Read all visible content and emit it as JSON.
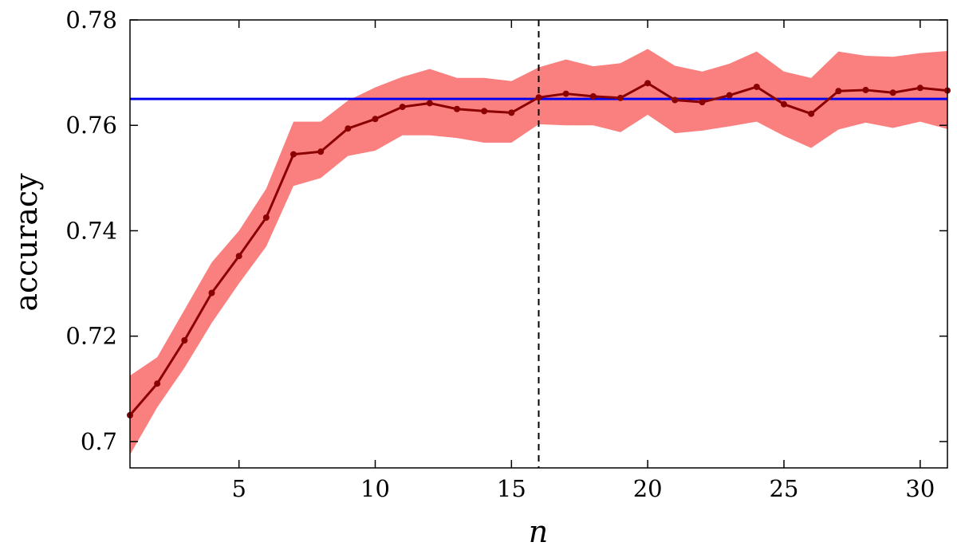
{
  "chart_data": {
    "type": "line",
    "title": "",
    "xlabel": "n",
    "ylabel": "accuracy",
    "xlim": [
      1,
      31
    ],
    "ylim": [
      0.695,
      0.78
    ],
    "xticks": [
      5,
      10,
      15,
      20,
      25,
      30
    ],
    "xtick_labels": [
      "5",
      "10",
      "15",
      "20",
      "25",
      "30"
    ],
    "yticks": [
      0.7,
      0.72,
      0.74,
      0.76,
      0.78
    ],
    "ytick_labels": [
      "0.7",
      "0.72",
      "0.74",
      "0.76",
      "0.78"
    ],
    "grid": false,
    "legend": "none",
    "x": [
      1,
      2,
      3,
      4,
      5,
      6,
      7,
      8,
      9,
      10,
      11,
      12,
      13,
      14,
      15,
      16,
      17,
      18,
      19,
      20,
      21,
      22,
      23,
      24,
      25,
      26,
      27,
      28,
      29,
      30,
      31
    ],
    "series": [
      {
        "values": [
          0.705,
          0.711,
          0.7192,
          0.7282,
          0.7352,
          0.7425,
          0.7545,
          0.755,
          0.7594,
          0.7612,
          0.7635,
          0.7642,
          0.7631,
          0.7627,
          0.7624,
          0.7653,
          0.766,
          0.7655,
          0.7652,
          0.768,
          0.7648,
          0.7644,
          0.7657,
          0.7673,
          0.764,
          0.7622,
          0.7665,
          0.7667,
          0.7662,
          0.7671,
          0.7666
        ],
        "upper": [
          0.7125,
          0.716,
          0.725,
          0.734,
          0.74,
          0.748,
          0.7607,
          0.7607,
          0.7647,
          0.7672,
          0.7692,
          0.7707,
          0.769,
          0.769,
          0.7684,
          0.771,
          0.7725,
          0.7712,
          0.7718,
          0.7745,
          0.7713,
          0.7702,
          0.7717,
          0.774,
          0.7702,
          0.769,
          0.774,
          0.7732,
          0.773,
          0.7737,
          0.7741
        ],
        "lower": [
          0.6975,
          0.7065,
          0.714,
          0.7225,
          0.73,
          0.737,
          0.7485,
          0.75,
          0.7542,
          0.7552,
          0.7581,
          0.7581,
          0.7576,
          0.7567,
          0.7567,
          0.7602,
          0.76,
          0.76,
          0.7587,
          0.762,
          0.7585,
          0.759,
          0.7598,
          0.7607,
          0.758,
          0.7557,
          0.7592,
          0.7605,
          0.7595,
          0.7607,
          0.7593
        ],
        "color": "#8b0000",
        "band_color": "#fa8080"
      }
    ],
    "reference_hline": {
      "y": 0.765,
      "color": "#0000ee"
    },
    "reference_vline": {
      "x": 16,
      "style": "dashed",
      "color": "#000000"
    }
  }
}
